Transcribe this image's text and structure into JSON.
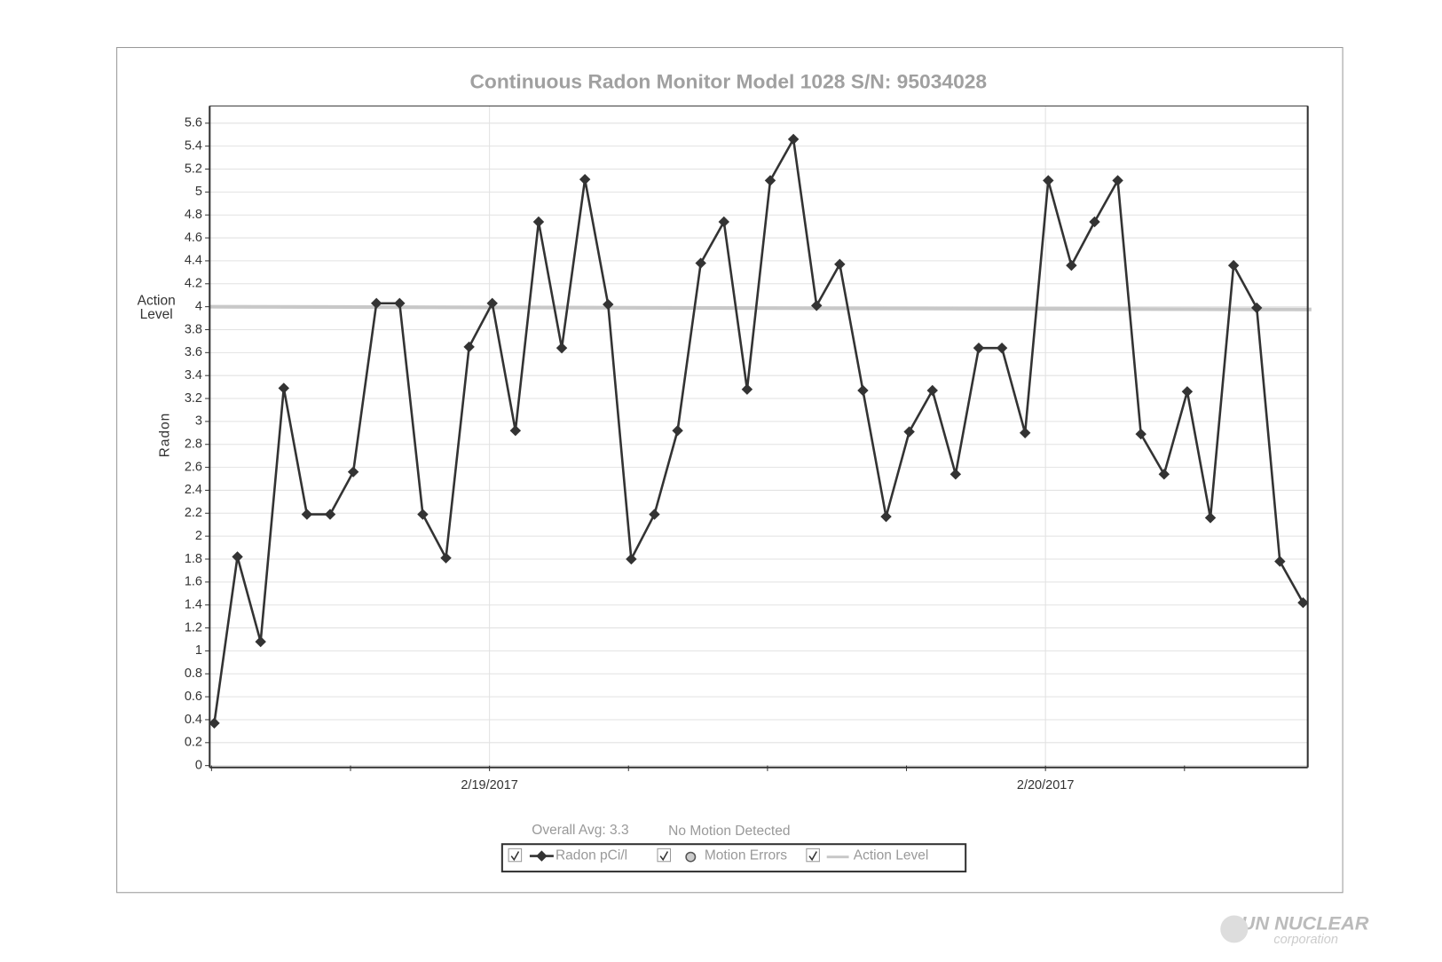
{
  "chart_data": {
    "type": "line",
    "title": "Continuous Radon Monitor Model 1028 S/N: 95034028",
    "y_label": "Radon",
    "categories": [
      null,
      null,
      null,
      null,
      null,
      null,
      null,
      null,
      null,
      null,
      null,
      null,
      "2/19/2017",
      null,
      null,
      null,
      null,
      null,
      null,
      null,
      null,
      null,
      null,
      null,
      null,
      null,
      null,
      null,
      null,
      null,
      null,
      null,
      null,
      null,
      null,
      null,
      "2/20/2017",
      null,
      null,
      null,
      null,
      null,
      null,
      null,
      null,
      null,
      null,
      null
    ],
    "series": [
      {
        "name": "Radon pCi/l",
        "color": "#333333",
        "values": [
          0.37,
          1.82,
          1.08,
          3.29,
          2.19,
          2.19,
          2.56,
          4.03,
          4.03,
          2.19,
          1.81,
          3.65,
          4.03,
          2.92,
          4.74,
          3.64,
          5.11,
          4.02,
          1.8,
          2.19,
          2.92,
          4.38,
          4.74,
          3.28,
          5.1,
          5.46,
          4.01,
          4.37,
          3.27,
          2.17,
          2.91,
          3.27,
          2.54,
          3.64,
          3.64,
          2.9,
          5.1,
          4.36,
          4.74,
          5.1,
          2.89,
          2.54,
          3.26,
          2.16,
          4.36,
          3.99,
          1.78,
          1.42
        ]
      }
    ],
    "motion_errors": {
      "name": "Motion Errors",
      "color": "#999999"
    },
    "action_level": {
      "name": "Action Level",
      "value": 4,
      "color": "#c8c8c8"
    },
    "overall_avg": "Overall Avg: 3.3",
    "motion_status": "No Motion Detected",
    "ylim": [
      0,
      5.75
    ],
    "yticks": [
      0,
      0.2,
      0.4,
      0.6,
      0.8,
      1,
      1.2,
      1.4,
      1.6,
      1.8,
      2,
      2.2,
      2.4,
      2.6,
      2.8,
      3,
      3.2,
      3.4,
      3.6,
      3.8,
      4,
      4.2,
      4.4,
      4.6,
      4.8,
      5,
      5.2,
      5.4,
      5.6
    ],
    "grid": true
  },
  "logo": {
    "name": "SUN NUCLEAR",
    "sub": "corporation"
  }
}
